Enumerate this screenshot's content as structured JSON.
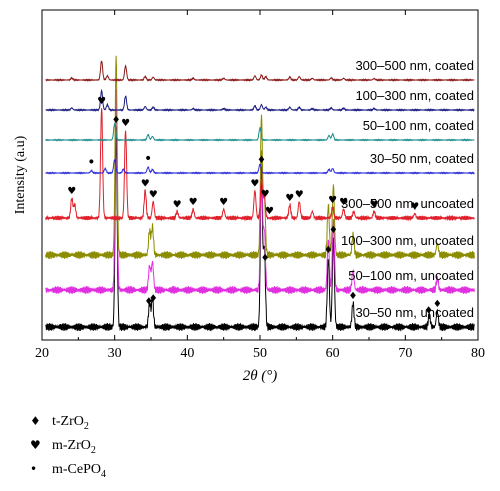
{
  "chart_data": {
    "type": "line",
    "xlabel": "2θ (°)",
    "ylabel": "Intensity (a.u)",
    "xlim": [
      20,
      80
    ],
    "xticks": [
      20,
      30,
      40,
      50,
      60,
      70,
      80
    ],
    "series": [
      {
        "name": "30–50 nm, uncoated",
        "color": "#000000",
        "offset": 0,
        "peaks": [
          [
            30.2,
            1.0
          ],
          [
            34.8,
            0.12
          ],
          [
            35.2,
            0.14
          ],
          [
            50.2,
            0.8
          ],
          [
            50.6,
            0.4
          ],
          [
            59.4,
            0.35
          ],
          [
            60.1,
            0.45
          ],
          [
            62.8,
            0.12
          ],
          [
            73.3,
            0.06
          ],
          [
            74.4,
            0.08
          ]
        ]
      },
      {
        "name": "50–100 nm, uncoated",
        "color": "#e030e0",
        "offset": 1,
        "peaks": [
          [
            30.2,
            1.0
          ],
          [
            34.8,
            0.12
          ],
          [
            35.2,
            0.14
          ],
          [
            50.2,
            0.7
          ],
          [
            50.6,
            0.3
          ],
          [
            59.4,
            0.25
          ],
          [
            60.1,
            0.35
          ],
          [
            62.8,
            0.1
          ],
          [
            74.4,
            0.06
          ]
        ]
      },
      {
        "name": "100–300 nm, uncoated",
        "color": "#8c8c00",
        "offset": 2,
        "peaks": [
          [
            30.2,
            1.0
          ],
          [
            34.8,
            0.12
          ],
          [
            35.2,
            0.14
          ],
          [
            50.2,
            0.7
          ],
          [
            50.6,
            0.3
          ],
          [
            59.4,
            0.25
          ],
          [
            60.1,
            0.35
          ],
          [
            62.8,
            0.1
          ],
          [
            74.4,
            0.06
          ]
        ]
      },
      {
        "name": "300–500 nm, uncoated",
        "color": "#e0202a",
        "offset": 3,
        "peaks": [
          [
            24.1,
            0.18
          ],
          [
            24.5,
            0.12
          ],
          [
            28.2,
            1.0
          ],
          [
            31.5,
            0.8
          ],
          [
            34.2,
            0.25
          ],
          [
            35.3,
            0.15
          ],
          [
            38.6,
            0.06
          ],
          [
            40.8,
            0.08
          ],
          [
            45.0,
            0.08
          ],
          [
            49.3,
            0.25
          ],
          [
            50.2,
            0.35
          ],
          [
            50.6,
            0.2
          ],
          [
            54.1,
            0.12
          ],
          [
            55.4,
            0.15
          ],
          [
            57.2,
            0.06
          ],
          [
            60.0,
            0.1
          ],
          [
            61.5,
            0.08
          ],
          [
            62.9,
            0.06
          ],
          [
            65.7,
            0.06
          ],
          [
            71.3,
            0.04
          ]
        ]
      },
      {
        "name": "30–50 nm, coated",
        "color": "#2a2ad8",
        "offset": 4,
        "peaks": [
          [
            26.8,
            0.08
          ],
          [
            28.7,
            0.15
          ],
          [
            30.0,
            0.45
          ],
          [
            31.2,
            0.12
          ],
          [
            34.6,
            0.2
          ],
          [
            35.2,
            0.12
          ],
          [
            50.0,
            0.3
          ],
          [
            59.5,
            0.12
          ],
          [
            60.0,
            0.15
          ]
        ]
      },
      {
        "name": "50–100 nm, coated",
        "color": "#1a8c8c",
        "offset": 5,
        "peaks": [
          [
            30.0,
            0.55
          ],
          [
            34.6,
            0.18
          ],
          [
            35.2,
            0.12
          ],
          [
            50.0,
            0.4
          ],
          [
            59.5,
            0.15
          ],
          [
            60.0,
            0.2
          ]
        ]
      },
      {
        "name": "100–300 nm, coated",
        "color": "#1a1a80",
        "offset": 6,
        "peaks": [
          [
            24.1,
            0.06
          ],
          [
            28.2,
            0.55
          ],
          [
            29.0,
            0.15
          ],
          [
            31.5,
            0.4
          ],
          [
            34.2,
            0.1
          ],
          [
            35.3,
            0.08
          ],
          [
            40.8,
            0.04
          ],
          [
            45.0,
            0.04
          ],
          [
            49.3,
            0.12
          ],
          [
            50.2,
            0.15
          ],
          [
            50.8,
            0.08
          ],
          [
            54.1,
            0.08
          ],
          [
            55.4,
            0.08
          ],
          [
            57.2,
            0.04
          ],
          [
            59.8,
            0.06
          ],
          [
            61.5,
            0.05
          ],
          [
            65.7,
            0.04
          ]
        ]
      },
      {
        "name": "300–500 nm, coated",
        "color": "#8c1a1a",
        "offset": 7,
        "peaks": [
          [
            24.1,
            0.06
          ],
          [
            28.2,
            0.55
          ],
          [
            29.0,
            0.12
          ],
          [
            31.5,
            0.4
          ],
          [
            34.2,
            0.1
          ],
          [
            35.3,
            0.08
          ],
          [
            40.8,
            0.05
          ],
          [
            45.0,
            0.05
          ],
          [
            49.3,
            0.12
          ],
          [
            50.2,
            0.14
          ],
          [
            50.8,
            0.1
          ],
          [
            54.1,
            0.08
          ],
          [
            55.4,
            0.1
          ],
          [
            57.2,
            0.05
          ],
          [
            59.8,
            0.06
          ],
          [
            61.5,
            0.05
          ],
          [
            65.7,
            0.04
          ]
        ]
      }
    ],
    "markers": {
      "t-ZrO2": {
        "symbol": "♦",
        "series": "30–50 nm, uncoated",
        "x": [
          30.2,
          34.7,
          35.3,
          50.2,
          50.7,
          59.4,
          60.1,
          62.8,
          73.2,
          74.4
        ]
      },
      "m-ZrO2": {
        "symbol": "♥",
        "series": "300–500 nm, uncoated",
        "x": [
          24.1,
          28.2,
          31.5,
          34.2,
          35.3,
          38.6,
          40.8,
          45.0,
          49.3,
          50.7,
          51.3,
          54.1,
          55.4,
          60.0,
          61.5,
          65.7,
          71.3
        ]
      },
      "m-CePO4": {
        "symbol": "•",
        "series": "30–50 nm, coated",
        "x": [
          26.8,
          34.6
        ]
      }
    }
  },
  "legend": [
    {
      "symbol": "♦",
      "label_main": "t-ZrO",
      "label_sub": "2"
    },
    {
      "symbol": "♥",
      "label_main": "m-ZrO",
      "label_sub": "2"
    },
    {
      "symbol": "•",
      "label_main": "m-CePO",
      "label_sub": "4"
    }
  ]
}
